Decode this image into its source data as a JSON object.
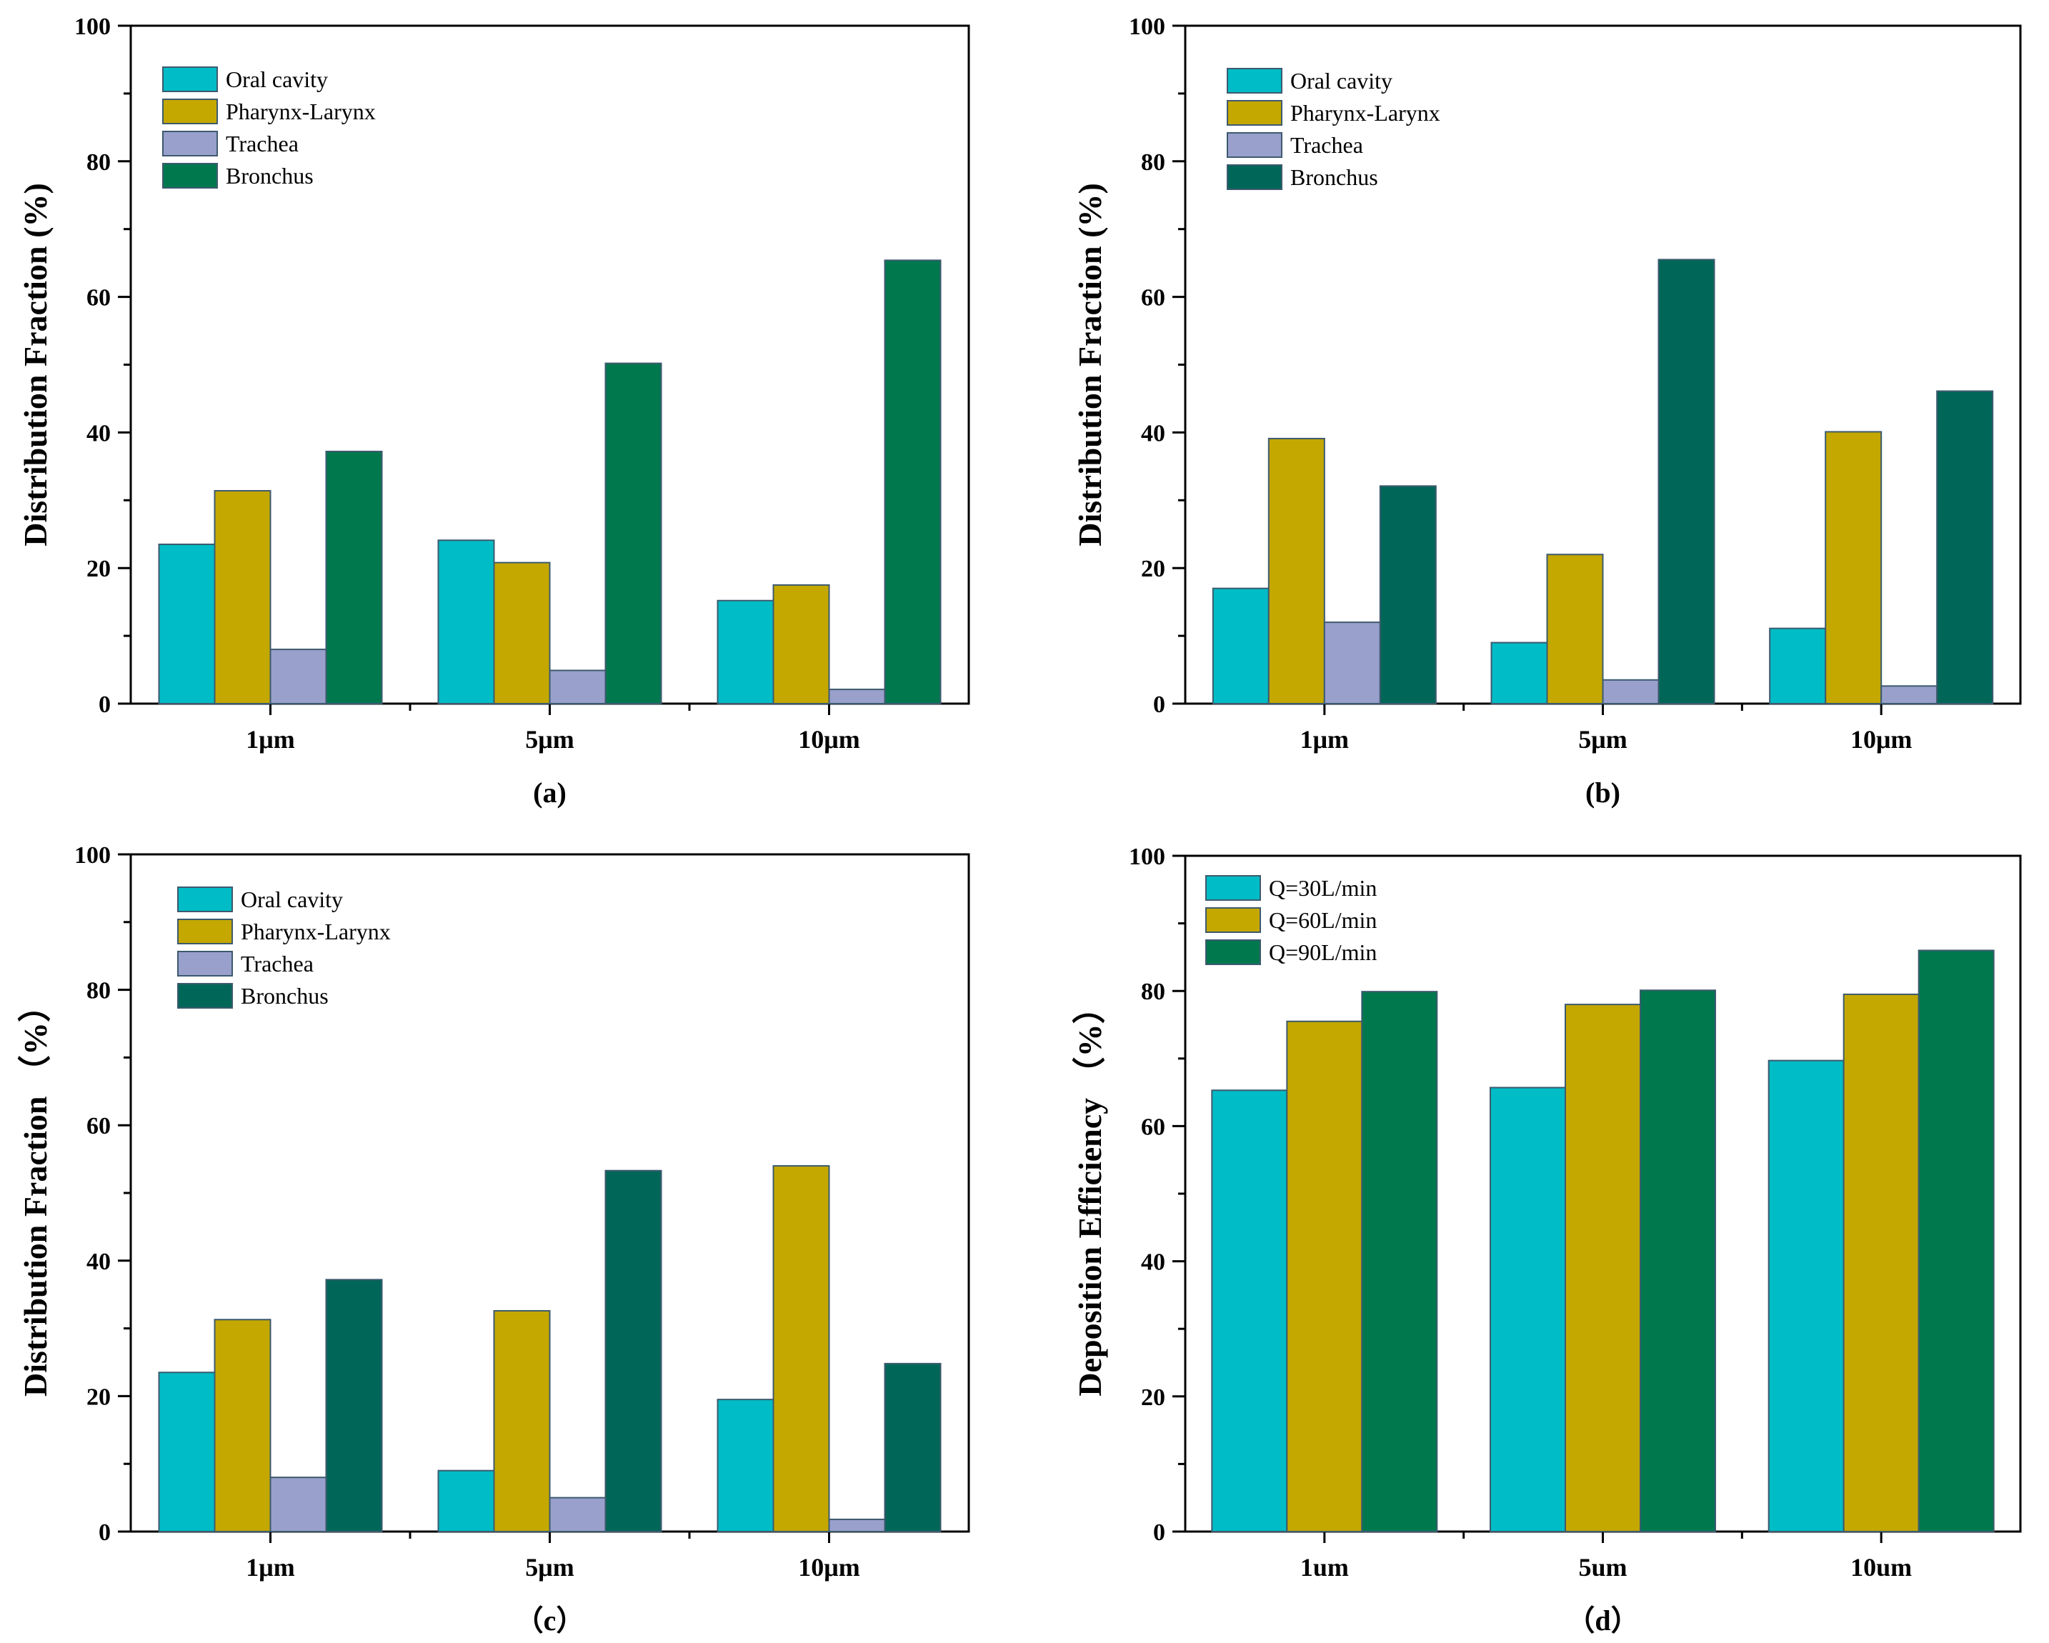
{
  "colors": {
    "oral": "#00bcc6",
    "pharynx": "#c4a800",
    "trachea": "#99a0cc",
    "bronchus_green": "#00784e",
    "bronchus_teal": "#006758",
    "q30": "#00bcc6",
    "q60": "#c4a800",
    "q90": "#00784e"
  },
  "chart_data": [
    {
      "id": "a",
      "type": "bar",
      "panel_label": "(a)",
      "ylabel": "Distribution Fraction (%)",
      "xlabel": "",
      "ylim": [
        0,
        100
      ],
      "yticks": [
        "0",
        "20",
        "40",
        "60",
        "80",
        "100"
      ],
      "categories": [
        "1μm",
        "5μm",
        "10μm"
      ],
      "legend_position": "top-left",
      "series": [
        {
          "name": "Oral cavity",
          "color_key": "oral",
          "values": [
            23.5,
            24.1,
            15.2
          ]
        },
        {
          "name": "Pharynx-Larynx",
          "color_key": "pharynx",
          "values": [
            31.4,
            20.8,
            17.5
          ]
        },
        {
          "name": "Trachea",
          "color_key": "trachea",
          "values": [
            8.0,
            4.9,
            2.1
          ]
        },
        {
          "name": "Bronchus",
          "color_key": "bronchus_green",
          "values": [
            37.2,
            50.2,
            65.4
          ]
        }
      ]
    },
    {
      "id": "b",
      "type": "bar",
      "panel_label": "(b)",
      "ylabel": "Distribution Fraction (%)",
      "xlabel": "",
      "ylim": [
        0,
        100
      ],
      "yticks": [
        "0",
        "20",
        "40",
        "60",
        "80",
        "100"
      ],
      "categories": [
        "1μm",
        "5μm",
        "10μm"
      ],
      "legend_position": "top-left",
      "series": [
        {
          "name": "Oral cavity",
          "color_key": "oral",
          "values": [
            17.0,
            9.0,
            11.1
          ]
        },
        {
          "name": "Pharynx-Larynx",
          "color_key": "pharynx",
          "values": [
            39.1,
            22.0,
            40.1
          ]
        },
        {
          "name": "Trachea",
          "color_key": "trachea",
          "values": [
            12.0,
            3.5,
            2.6
          ]
        },
        {
          "name": "Bronchus",
          "color_key": "bronchus_teal",
          "values": [
            32.1,
            65.5,
            46.1
          ]
        }
      ]
    },
    {
      "id": "c",
      "type": "bar",
      "panel_label": "（c）",
      "ylabel": "Distribution Fraction （%）",
      "xlabel": "",
      "ylim": [
        0,
        100
      ],
      "yticks": [
        "0",
        "20",
        "40",
        "60",
        "80",
        "100"
      ],
      "categories": [
        "1μm",
        "5μm",
        "10μm"
      ],
      "legend_position": "top-left",
      "series": [
        {
          "name": "Oral cavity",
          "color_key": "oral",
          "values": [
            23.5,
            9.0,
            19.5
          ]
        },
        {
          "name": "Pharynx-Larynx",
          "color_key": "pharynx",
          "values": [
            31.3,
            32.6,
            54.0
          ]
        },
        {
          "name": "Trachea",
          "color_key": "trachea",
          "values": [
            8.0,
            5.0,
            1.8
          ]
        },
        {
          "name": "Bronchus",
          "color_key": "bronchus_teal",
          "values": [
            37.2,
            53.3,
            24.8
          ]
        }
      ]
    },
    {
      "id": "d",
      "type": "bar",
      "panel_label": "（d）",
      "ylabel": "Deposition Efficiency （%）",
      "xlabel": "",
      "ylim": [
        0,
        100
      ],
      "yticks": [
        "0",
        "20",
        "40",
        "60",
        "80",
        "100"
      ],
      "categories": [
        "1um",
        "5um",
        "10um"
      ],
      "legend_position": "top-left",
      "series": [
        {
          "name": "Q=30L/min",
          "color_key": "q30",
          "values": [
            65.3,
            65.7,
            69.7
          ]
        },
        {
          "name": "Q=60L/min",
          "color_key": "q60",
          "values": [
            75.5,
            78.0,
            79.5
          ]
        },
        {
          "name": "Q=90L/min",
          "color_key": "q90",
          "values": [
            79.9,
            80.1,
            86.0
          ]
        }
      ]
    }
  ]
}
